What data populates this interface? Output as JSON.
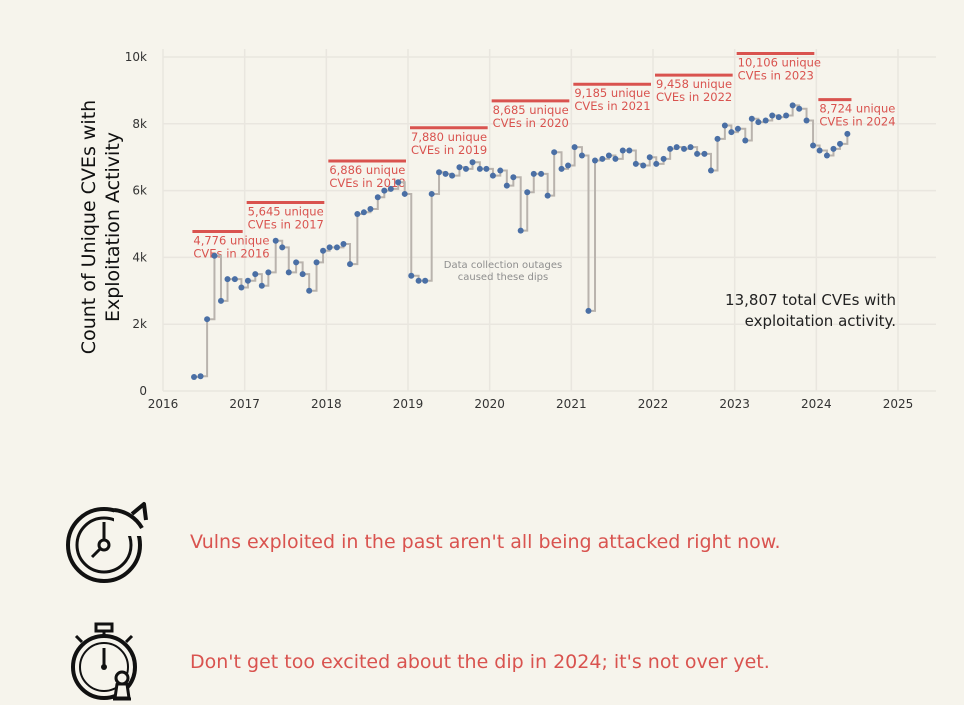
{
  "chart_data": {
    "type": "line",
    "style": "step-with-points",
    "ylabel": "Count of Unique CVEs with Exploitation Activity",
    "xlabel": "",
    "xlim": [
      2016.0,
      2025.0
    ],
    "ylim": [
      0,
      10000
    ],
    "x_ticks": [
      "2016",
      "2017",
      "2018",
      "2019",
      "2020",
      "2021",
      "2022",
      "2023",
      "2024",
      "2025"
    ],
    "y_ticks": [
      "0",
      "2k",
      "4k",
      "6k",
      "8k",
      "10k"
    ],
    "grid": true,
    "line_color": "#b9b3ad",
    "point_color": "#4a6fa5",
    "accent_color": "#d9534f",
    "points": [
      [
        2016.38,
        420
      ],
      [
        2016.46,
        440
      ],
      [
        2016.54,
        2150
      ],
      [
        2016.63,
        4050
      ],
      [
        2016.71,
        2700
      ],
      [
        2016.79,
        3350
      ],
      [
        2016.88,
        3350
      ],
      [
        2016.96,
        3100
      ],
      [
        2017.04,
        3300
      ],
      [
        2017.13,
        3500
      ],
      [
        2017.21,
        3150
      ],
      [
        2017.29,
        3550
      ],
      [
        2017.38,
        4500
      ],
      [
        2017.46,
        4300
      ],
      [
        2017.54,
        3550
      ],
      [
        2017.63,
        3850
      ],
      [
        2017.71,
        3500
      ],
      [
        2017.79,
        3000
      ],
      [
        2017.88,
        3850
      ],
      [
        2017.96,
        4200
      ],
      [
        2018.04,
        4300
      ],
      [
        2018.13,
        4300
      ],
      [
        2018.21,
        4400
      ],
      [
        2018.29,
        3800
      ],
      [
        2018.38,
        5300
      ],
      [
        2018.46,
        5350
      ],
      [
        2018.54,
        5450
      ],
      [
        2018.63,
        5800
      ],
      [
        2018.71,
        6000
      ],
      [
        2018.79,
        6050
      ],
      [
        2018.88,
        6250
      ],
      [
        2018.96,
        5900
      ],
      [
        2019.04,
        3450
      ],
      [
        2019.13,
        3300
      ],
      [
        2019.21,
        3300
      ],
      [
        2019.29,
        5900
      ],
      [
        2019.38,
        6550
      ],
      [
        2019.46,
        6500
      ],
      [
        2019.54,
        6450
      ],
      [
        2019.63,
        6700
      ],
      [
        2019.71,
        6650
      ],
      [
        2019.79,
        6850
      ],
      [
        2019.88,
        6650
      ],
      [
        2019.96,
        6650
      ],
      [
        2020.04,
        6450
      ],
      [
        2020.13,
        6600
      ],
      [
        2020.21,
        6150
      ],
      [
        2020.29,
        6400
      ],
      [
        2020.38,
        4800
      ],
      [
        2020.46,
        5950
      ],
      [
        2020.54,
        6500
      ],
      [
        2020.63,
        6500
      ],
      [
        2020.71,
        5850
      ],
      [
        2020.79,
        7150
      ],
      [
        2020.88,
        6650
      ],
      [
        2020.96,
        6750
      ],
      [
        2021.04,
        7300
      ],
      [
        2021.13,
        7050
      ],
      [
        2021.21,
        2400
      ],
      [
        2021.29,
        6900
      ],
      [
        2021.38,
        6950
      ],
      [
        2021.46,
        7050
      ],
      [
        2021.54,
        6950
      ],
      [
        2021.63,
        7200
      ],
      [
        2021.71,
        7200
      ],
      [
        2021.79,
        6800
      ],
      [
        2021.88,
        6750
      ],
      [
        2021.96,
        7000
      ],
      [
        2022.04,
        6800
      ],
      [
        2022.13,
        6950
      ],
      [
        2022.21,
        7250
      ],
      [
        2022.29,
        7300
      ],
      [
        2022.38,
        7250
      ],
      [
        2022.46,
        7300
      ],
      [
        2022.54,
        7100
      ],
      [
        2022.63,
        7100
      ],
      [
        2022.71,
        6600
      ],
      [
        2022.79,
        7550
      ],
      [
        2022.88,
        7950
      ],
      [
        2022.96,
        7750
      ],
      [
        2023.04,
        7850
      ],
      [
        2023.13,
        7500
      ],
      [
        2023.21,
        8150
      ],
      [
        2023.29,
        8050
      ],
      [
        2023.38,
        8100
      ],
      [
        2023.46,
        8250
      ],
      [
        2023.54,
        8200
      ],
      [
        2023.63,
        8250
      ],
      [
        2023.71,
        8550
      ],
      [
        2023.79,
        8450
      ],
      [
        2023.88,
        8100
      ],
      [
        2023.96,
        7350
      ],
      [
        2024.04,
        7200
      ],
      [
        2024.13,
        7050
      ],
      [
        2024.21,
        7250
      ],
      [
        2024.29,
        7400
      ],
      [
        2024.38,
        7700
      ]
    ],
    "year_totals": [
      {
        "year": 2016,
        "value": 4776,
        "label": "4,776 unique",
        "label2": "CVEs in 2016"
      },
      {
        "year": 2017,
        "value": 5645,
        "label": "5,645 unique",
        "label2": "CVEs in 2017"
      },
      {
        "year": 2018,
        "value": 6886,
        "label": "6,886 unique",
        "label2": "CVEs in 2018"
      },
      {
        "year": 2019,
        "value": 7880,
        "label": "7,880 unique",
        "label2": "CVEs in 2019"
      },
      {
        "year": 2020,
        "value": 8685,
        "label": "8,685 unique",
        "label2": "CVEs in 2020"
      },
      {
        "year": 2021,
        "value": 9185,
        "label": "9,185 unique",
        "label2": "CVEs in 2021"
      },
      {
        "year": 2022,
        "value": 9458,
        "label": "9,458 unique",
        "label2": "CVEs in 2022"
      },
      {
        "year": 2023,
        "value": 10106,
        "label": "10,106 unique",
        "label2": "CVEs in 2023"
      },
      {
        "year": 2024,
        "value": 8724,
        "label": "8,724 unique",
        "label2": "CVEs in 2024"
      }
    ],
    "annotations": {
      "outage_line1": "Data collection outages",
      "outage_line2": "caused these dips",
      "total_line1": "13,807 total CVEs with",
      "total_line2": "exploitation activity."
    }
  },
  "tips": [
    {
      "icon": "history-clock-icon",
      "text": "Vulns exploited in the past aren't all being attacked right now."
    },
    {
      "icon": "stopwatch-chess-icon",
      "text": "Don't get too excited about the dip in 2024; it's not over yet."
    }
  ]
}
